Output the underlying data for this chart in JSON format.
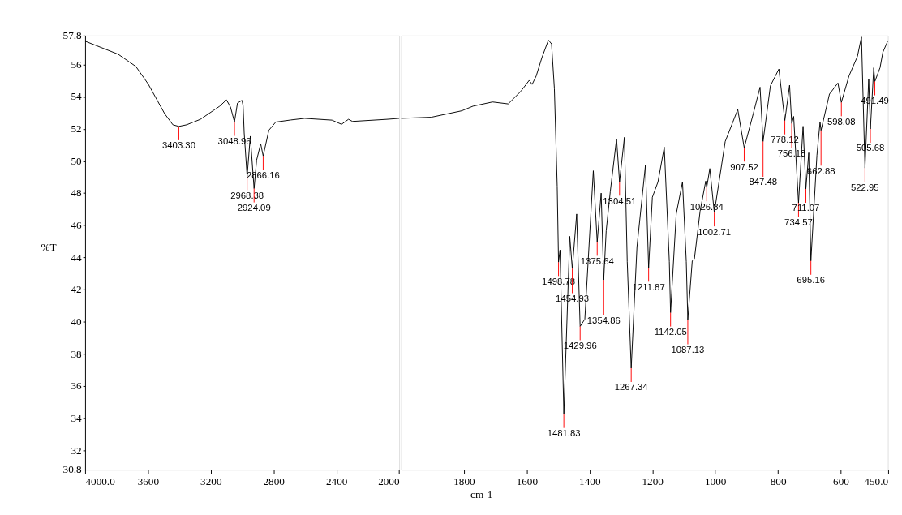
{
  "chart_data": [
    {
      "type": "line",
      "ylabel": "%T",
      "x": [
        4000,
        3790,
        3677,
        3598,
        3493,
        3441,
        3403.3,
        3354,
        3266,
        3144,
        3100,
        3074,
        3048.96,
        3030,
        3001,
        2994,
        2987,
        2968.38,
        2948,
        2924.09,
        2908,
        2882,
        2866.16,
        2830,
        2786,
        2690,
        2602,
        2428,
        2367,
        2323,
        2297,
        2078,
        2000
      ],
      "series": [
        {
          "color": "#000000",
          "values": [
            57.45,
            56.64,
            55.88,
            54.78,
            52.93,
            52.25,
            52.15,
            52.25,
            52.59,
            53.4,
            53.8,
            53.35,
            52.42,
            53.6,
            53.77,
            53.43,
            51.74,
            49.04,
            51.54,
            48.28,
            50.05,
            51.07,
            50.31,
            51.91,
            52.42,
            52.55,
            52.65,
            52.54,
            52.28,
            52.59,
            52.46,
            52.59,
            52.65
          ]
        }
      ],
      "xlim": [
        4000,
        2000
      ],
      "xticks": [
        {
          "value": 4000,
          "label": "4000.0"
        },
        3600,
        3200,
        2800,
        2400,
        2000
      ],
      "ylim": [
        30.8,
        57.8
      ],
      "yticks": [
        30.8,
        32,
        34,
        36,
        38,
        40,
        42,
        44,
        46,
        48,
        50,
        52,
        54,
        56,
        57.8
      ],
      "grid": false,
      "marker": "none",
      "line_style": "solid",
      "annotations": [
        {
          "text": "3403.30",
          "x": 3403.3,
          "y": 52.15
        },
        {
          "text": "3048.96",
          "x": 3048.96,
          "y": 52.42
        },
        {
          "text": "2968.38",
          "x": 2968.38,
          "y": 49.04
        },
        {
          "text": "2924.09",
          "x": 2924.09,
          "y": 48.28
        },
        {
          "text": "2866.16",
          "x": 2866.16,
          "y": 50.31
        }
      ]
    },
    {
      "type": "line",
      "xlabel": "cm-1",
      "x": [
        2000,
        1904,
        1807,
        1771,
        1709,
        1659,
        1619,
        1592,
        1583,
        1570,
        1552,
        1531,
        1521,
        1512,
        1503,
        1498.78,
        1494,
        1481.83,
        1463,
        1454.93,
        1441,
        1429.96,
        1415,
        1388,
        1375.64,
        1363,
        1354.86,
        1347,
        1334,
        1314,
        1304.51,
        1289,
        1280,
        1267.34,
        1249,
        1222,
        1211.87,
        1200,
        1182,
        1162,
        1146,
        1142.05,
        1124,
        1104,
        1092,
        1087.13,
        1073,
        1066,
        1048,
        1030,
        1026.84,
        1017,
        1002.71,
        968,
        928,
        907.52,
        878,
        857,
        847.48,
        824,
        797,
        778.12,
        763,
        756.18,
        750,
        734.57,
        720,
        711.07,
        702,
        695.16,
        676,
        666,
        662.88,
        636,
        609,
        598.08,
        574,
        547,
        534,
        522.95,
        511,
        505.68,
        495,
        491.49,
        475,
        466,
        450
      ],
      "series": [
        {
          "color": "#000000",
          "values": [
            52.65,
            52.72,
            53.12,
            53.41,
            53.67,
            53.55,
            54.33,
            55.02,
            54.76,
            55.28,
            56.41,
            57.52,
            57.28,
            54.5,
            48.43,
            43.7,
            44.46,
            34.25,
            45.31,
            43.3,
            46.7,
            39.71,
            40.16,
            49.39,
            44.96,
            48.0,
            42.6,
            45.66,
            48.09,
            51.38,
            48.7,
            51.47,
            43.75,
            37.11,
            44.65,
            49.74,
            43.35,
            47.74,
            48.7,
            50.86,
            43.75,
            40.56,
            46.7,
            48.7,
            43.75,
            40.12,
            43.78,
            43.92,
            46.87,
            48.75,
            48.35,
            49.53,
            46.79,
            51.21,
            53.2,
            50.82,
            52.99,
            54.59,
            51.21,
            54.68,
            55.72,
            52.51,
            54.71,
            52.33,
            52.77,
            47.39,
            52.16,
            48.26,
            50.51,
            43.78,
            50.34,
            52.42,
            51.9,
            54.16,
            54.85,
            53.64,
            55.28,
            56.5,
            57.71,
            49.56,
            55.11,
            51.99,
            55.8,
            54.94,
            55.8,
            56.76,
            57.48
          ]
        }
      ],
      "xlim": [
        2000,
        450
      ],
      "xticks": [
        1800,
        1600,
        1400,
        1200,
        1000,
        800,
        600,
        {
          "value": 450,
          "label": "450.0"
        }
      ],
      "ylim": [
        30.8,
        57.8
      ],
      "tick_labels": "x",
      "grid": false,
      "marker": "none",
      "line_style": "solid",
      "annotations": [
        {
          "text": "1498.78",
          "x": 1498.78,
          "y": 43.7
        },
        {
          "text": "1481.83",
          "x": 1481.83,
          "y": 34.25
        },
        {
          "text": "1454.93",
          "x": 1454.93,
          "y": 43.3
        },
        {
          "text": "1429.96",
          "x": 1429.96,
          "y": 39.71
        },
        {
          "text": "1375.64",
          "x": 1375.64,
          "y": 44.96
        },
        {
          "text": "1354.86",
          "x": 1354.86,
          "y": 42.6
        },
        {
          "text": "1304.51",
          "x": 1304.51,
          "y": 48.7
        },
        {
          "text": "1267.34",
          "x": 1267.34,
          "y": 37.11
        },
        {
          "text": "1211.87",
          "x": 1211.87,
          "y": 43.35
        },
        {
          "text": "1142.05",
          "x": 1142.05,
          "y": 40.56
        },
        {
          "text": "1087.13",
          "x": 1087.13,
          "y": 40.12
        },
        {
          "text": "1026.84",
          "x": 1026.84,
          "y": 48.35
        },
        {
          "text": "1002.71",
          "x": 1002.71,
          "y": 46.79
        },
        {
          "text": "907.52",
          "x": 907.52,
          "y": 50.82
        },
        {
          "text": "847.48",
          "x": 847.48,
          "y": 51.21
        },
        {
          "text": "778.12",
          "x": 778.12,
          "y": 52.51
        },
        {
          "text": "756.18",
          "x": 756.18,
          "y": 52.33
        },
        {
          "text": "734.57",
          "x": 734.57,
          "y": 47.39
        },
        {
          "text": "711.07",
          "x": 711.07,
          "y": 48.26
        },
        {
          "text": "695.16",
          "x": 695.16,
          "y": 43.78
        },
        {
          "text": "662.88",
          "x": 662.88,
          "y": 51.9
        },
        {
          "text": "598.08",
          "x": 598.08,
          "y": 53.64
        },
        {
          "text": "522.95",
          "x": 522.95,
          "y": 49.56
        },
        {
          "text": "505.68",
          "x": 505.68,
          "y": 51.99
        },
        {
          "text": "491.49",
          "x": 491.49,
          "y": 54.94
        }
      ]
    }
  ]
}
